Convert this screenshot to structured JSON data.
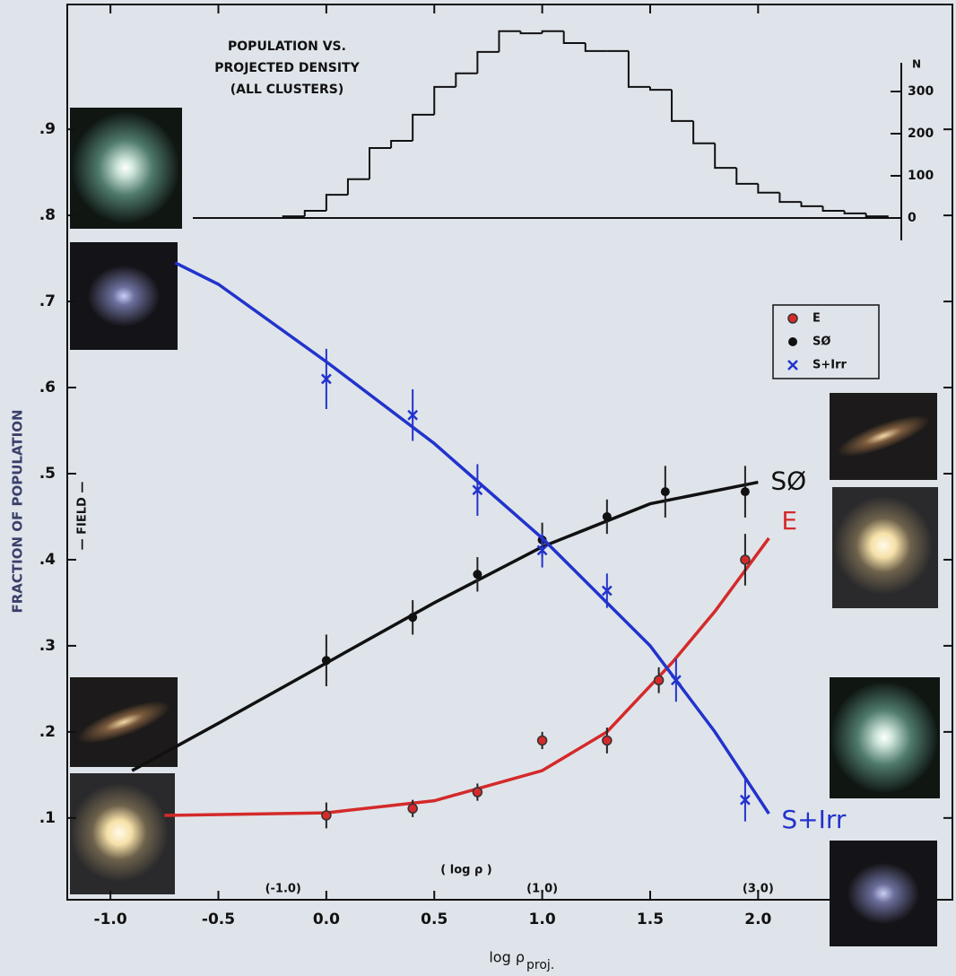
{
  "chart_data": [
    {
      "type": "scatter",
      "ylabel": "FRACTION OF POPULATION",
      "annotation": "— FIELD —",
      "xlabel": "log ρ",
      "xlabel_sub": "proj.",
      "x2label": "( log ρ )",
      "xlim": [
        -1.2,
        2.9
      ],
      "ylim": [
        0.005,
        1.045
      ],
      "xticks": [
        {
          "value": -1.0,
          "label": "-1.0"
        },
        {
          "value": -0.5,
          "label": "-0.5"
        },
        {
          "value": 0.0,
          "label": "0.0"
        },
        {
          "value": 0.5,
          "label": "0.5"
        },
        {
          "value": 1.0,
          "label": "1.0"
        },
        {
          "value": 1.5,
          "label": "1.5"
        },
        {
          "value": 2.0,
          "label": "2.0"
        }
      ],
      "x2ticks": [
        {
          "value": -0.2,
          "label": "(-1.0)"
        },
        {
          "value": 1.0,
          "label": "(1.0)"
        },
        {
          "value": 2.0,
          "label": "(3.0)"
        }
      ],
      "yticks": [
        {
          "value": 0.1,
          "label": ".1"
        },
        {
          "value": 0.2,
          "label": ".2"
        },
        {
          "value": 0.3,
          "label": ".3"
        },
        {
          "value": 0.4,
          "label": ".4"
        },
        {
          "value": 0.5,
          "label": ".5"
        },
        {
          "value": 0.6,
          "label": ".6"
        },
        {
          "value": 0.7,
          "label": ".7"
        },
        {
          "value": 0.8,
          "label": ".8"
        },
        {
          "value": 0.9,
          "label": ".9"
        }
      ],
      "legend": "upper right",
      "series": [
        {
          "name": "E",
          "color": "#d42a2a",
          "marker": "circle",
          "x": [
            0.0,
            0.4,
            0.7,
            1.0,
            1.3,
            1.54,
            1.94
          ],
          "values": [
            0.103,
            0.111,
            0.13,
            0.19,
            0.19,
            0.26,
            0.4
          ],
          "errors": [
            0.015,
            0.01,
            0.01,
            0.01,
            0.015,
            0.015,
            0.03
          ],
          "fit": {
            "x": [
              -0.75,
              0.0,
              0.5,
              1.0,
              1.3,
              1.6,
              1.8,
              2.05
            ],
            "values": [
              0.103,
              0.106,
              0.12,
              0.155,
              0.2,
              0.28,
              0.34,
              0.425
            ]
          }
        },
        {
          "name": "SØ",
          "color": "#111111",
          "marker": "dot",
          "x": [
            0.0,
            0.4,
            0.7,
            1.0,
            1.3,
            1.57,
            1.94
          ],
          "values": [
            0.283,
            0.333,
            0.383,
            0.423,
            0.45,
            0.479,
            0.479
          ],
          "errors": [
            0.03,
            0.02,
            0.02,
            0.02,
            0.02,
            0.03,
            0.03
          ],
          "fit": {
            "x": [
              -0.9,
              -0.5,
              0.0,
              0.5,
              1.0,
              1.5,
              2.0
            ],
            "values": [
              0.155,
              0.21,
              0.28,
              0.35,
              0.415,
              0.465,
              0.49
            ]
          }
        },
        {
          "name": "S+Irr",
          "color": "#2233cc",
          "marker": "x",
          "x": [
            0.0,
            0.4,
            0.7,
            1.0,
            1.3,
            1.62,
            1.94
          ],
          "values": [
            0.61,
            0.568,
            0.481,
            0.411,
            0.364,
            0.26,
            0.121
          ],
          "errors": [
            0.035,
            0.03,
            0.03,
            0.02,
            0.02,
            0.025,
            0.025
          ],
          "fit": {
            "x": [
              -0.7,
              -0.5,
              0.0,
              0.5,
              1.0,
              1.5,
              1.8,
              2.05
            ],
            "values": [
              0.745,
              0.72,
              0.63,
              0.535,
              0.425,
              0.3,
              0.2,
              0.105
            ]
          }
        }
      ]
    },
    {
      "type": "histogram",
      "title": [
        "POPULATION VS.",
        "PROJECTED DENSITY",
        "(ALL CLUSTERS)"
      ],
      "ylabel": "N",
      "xlim": [
        -1.2,
        2.9
      ],
      "ylim": [
        0,
        450
      ],
      "yticks": [
        0,
        100,
        200,
        300
      ],
      "bins": [
        -0.2,
        -0.1,
        0.0,
        0.1,
        0.2,
        0.3,
        0.4,
        0.5,
        0.6,
        0.7,
        0.8,
        0.9,
        1.0,
        1.1,
        1.2,
        1.3,
        1.4,
        1.5,
        1.6,
        1.7,
        1.8,
        1.9,
        2.0,
        2.1,
        2.2,
        2.3,
        2.4,
        2.5,
        2.6
      ],
      "counts": [
        4,
        17,
        55,
        92,
        166,
        183,
        245,
        311,
        343,
        394,
        443,
        438,
        443,
        415,
        396,
        396,
        311,
        304,
        230,
        177,
        119,
        81,
        60,
        38,
        28,
        17,
        11,
        4
      ],
      "color": "#111111"
    }
  ]
}
